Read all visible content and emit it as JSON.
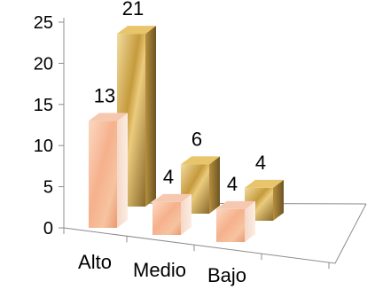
{
  "chart_data": {
    "type": "bar",
    "style": "3d-clustered-column",
    "categories": [
      "Alto",
      "Medio",
      "Bajo"
    ],
    "series": [
      {
        "values": [
          13,
          4,
          4
        ],
        "color": "#F4A882"
      },
      {
        "values": [
          21,
          6,
          4
        ],
        "color": "#D9B45A"
      }
    ],
    "data_labels": true,
    "ylim": [
      0,
      25
    ],
    "yticks": [
      0,
      5,
      10,
      15,
      20,
      25
    ],
    "grid": false,
    "legend": "none"
  }
}
